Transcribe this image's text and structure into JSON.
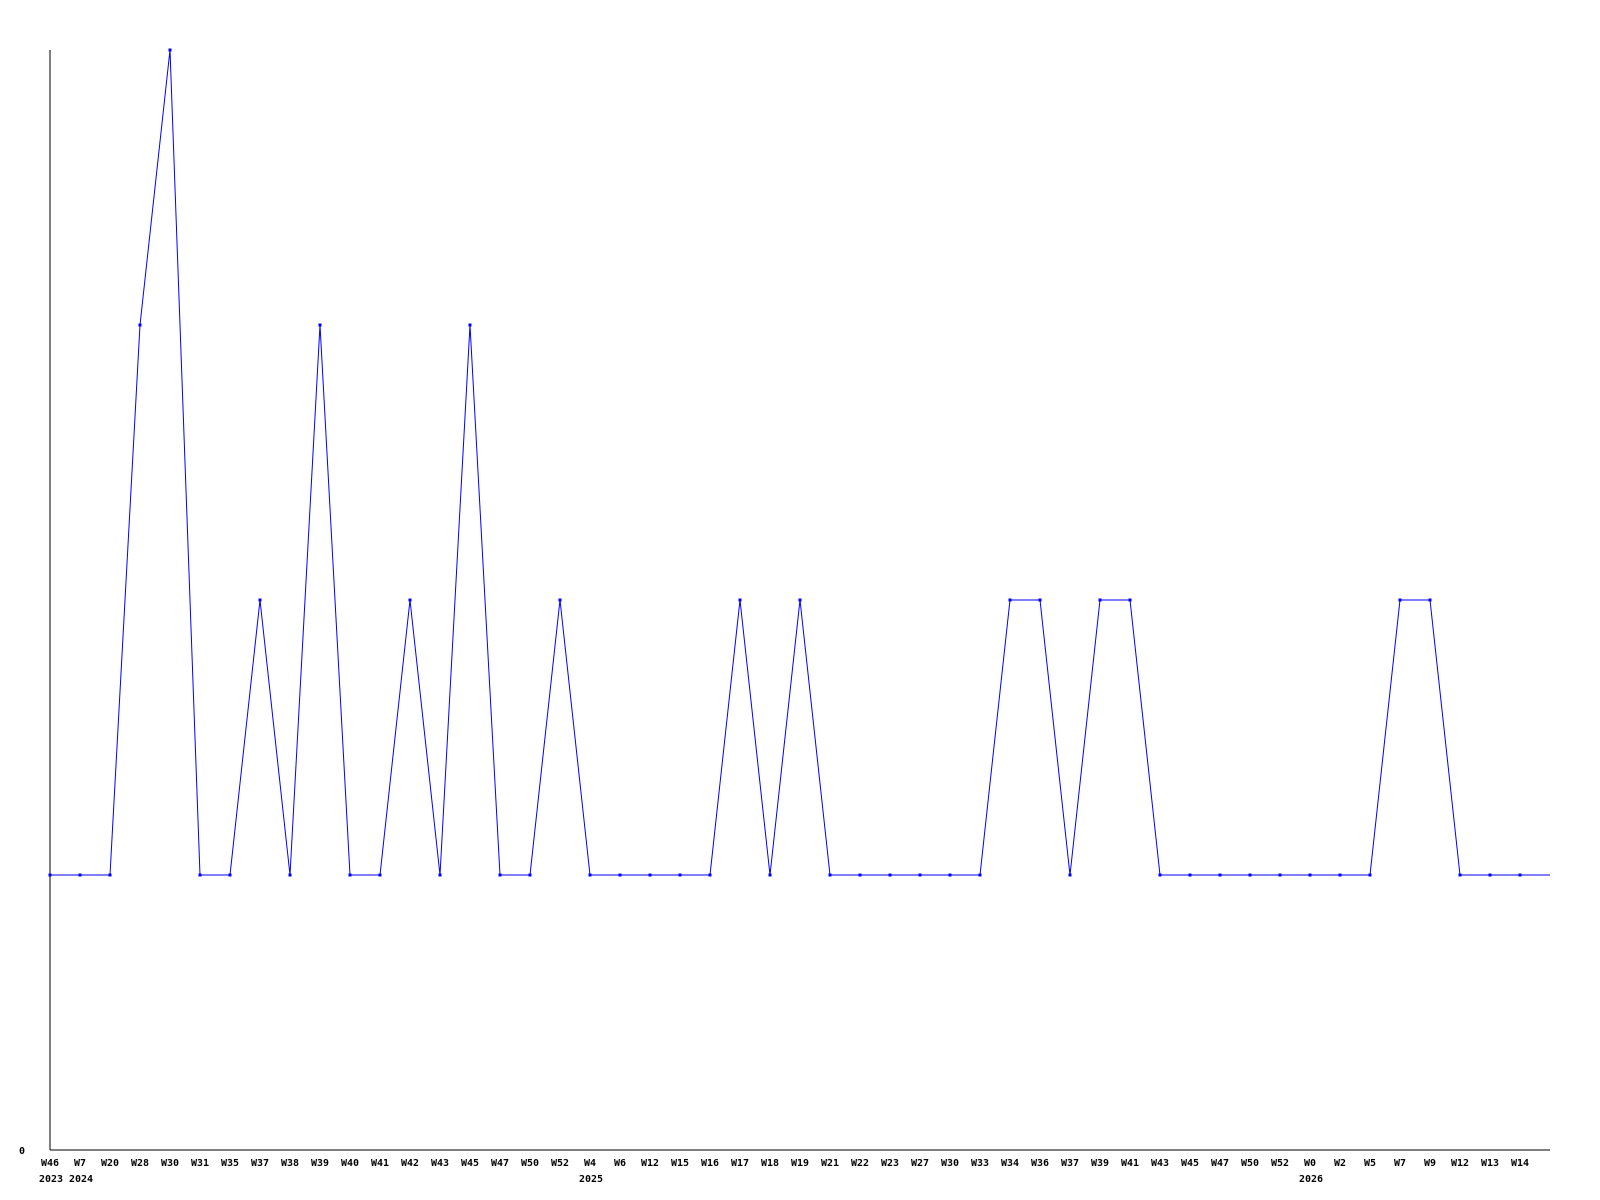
{
  "chart_data": {
    "type": "line",
    "title": "",
    "xlabel": "",
    "ylabel": "",
    "ylim": [
      0,
      4
    ],
    "y_tick_labels": [
      "0"
    ],
    "grid": false,
    "legend": "none",
    "line_color": "#0000ff",
    "categories": [
      "W46",
      "W7",
      "W20",
      "W28",
      "W30",
      "W31",
      "W35",
      "W37",
      "W38",
      "W39",
      "W40",
      "W41",
      "W42",
      "W43",
      "W45",
      "W47",
      "W50",
      "W52",
      "W4",
      "W6",
      "W12",
      "W15",
      "W16",
      "W17",
      "W18",
      "W19",
      "W21",
      "W22",
      "W23",
      "W27",
      "W30",
      "W33",
      "W34",
      "W36",
      "W37",
      "W39",
      "W41",
      "W43",
      "W45",
      "W47",
      "W50",
      "W52",
      "W0",
      "W2",
      "W5",
      "W7",
      "W9",
      "W12",
      "W13",
      "W14"
    ],
    "year_labels": [
      {
        "category_index": 0,
        "label": "2023"
      },
      {
        "category_index": 1,
        "label": "2024"
      },
      {
        "category_index": 18,
        "label": "2025"
      },
      {
        "category_index": 42,
        "label": "2026"
      }
    ],
    "series": [
      {
        "values": [
          1,
          1,
          1,
          3,
          4,
          1,
          1,
          2,
          1,
          3,
          1,
          1,
          2,
          1,
          3,
          1,
          1,
          2,
          1,
          1,
          1,
          1,
          1,
          2,
          1,
          2,
          1,
          1,
          1,
          1,
          1,
          1,
          2,
          2,
          1,
          2,
          2,
          1,
          1,
          1,
          1,
          1,
          1,
          1,
          1,
          2,
          2,
          1,
          1,
          1
        ]
      }
    ]
  }
}
